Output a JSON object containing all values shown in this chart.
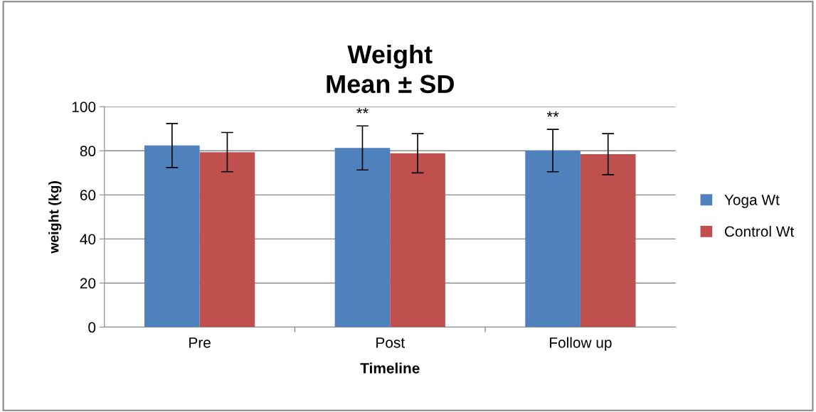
{
  "chart_data": {
    "type": "bar",
    "title": "Weight\nMean ± SD",
    "xlabel": "Timeline",
    "ylabel": "weight (kg)",
    "categories": [
      "Pre",
      "Post",
      "Follow up"
    ],
    "series": [
      {
        "name": "Yoga Wt",
        "color": "#4f81bd",
        "values": [
          82.4,
          81.3,
          80.1
        ],
        "errors": [
          10,
          10,
          9.6
        ]
      },
      {
        "name": "Control Wt",
        "color": "#c0504d",
        "values": [
          79.4,
          78.9,
          78.5
        ],
        "errors": [
          8.9,
          8.9,
          9.3
        ]
      }
    ],
    "ylim": [
      0,
      100
    ],
    "yticks": [
      0,
      20,
      40,
      60,
      80,
      100
    ],
    "grid": "y",
    "legend": "right",
    "annotations": [
      "**",
      "**"
    ]
  }
}
